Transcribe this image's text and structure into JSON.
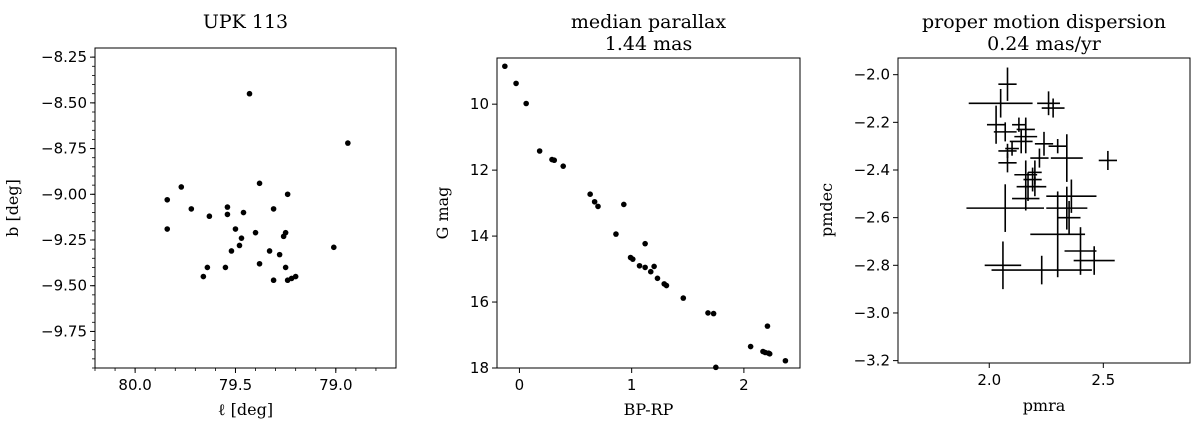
{
  "chart_data": [
    {
      "type": "scatter",
      "title": "UPK 113",
      "xlabel": "ℓ [deg]",
      "ylabel": "b [deg]",
      "xlim": [
        80.2,
        78.7
      ],
      "ylim": [
        -9.95,
        -8.2
      ],
      "xticks": [
        80.0,
        79.5,
        79.0
      ],
      "xtick_labels": [
        "80.0",
        "79.5",
        "79.0"
      ],
      "yticks": [
        -8.25,
        -8.5,
        -8.75,
        -9.0,
        -9.25,
        -9.5,
        -9.75
      ],
      "ytick_labels": [
        "−8.25",
        "−8.50",
        "−8.75",
        "−9.00",
        "−9.25",
        "−9.50",
        "−9.75"
      ],
      "grid": false,
      "points": [
        [
          79.43,
          -8.45
        ],
        [
          78.94,
          -8.72
        ],
        [
          79.84,
          -9.03
        ],
        [
          79.77,
          -8.96
        ],
        [
          79.72,
          -9.08
        ],
        [
          79.84,
          -9.19
        ],
        [
          79.63,
          -9.12
        ],
        [
          79.54,
          -9.07
        ],
        [
          79.54,
          -9.11
        ],
        [
          79.46,
          -9.1
        ],
        [
          79.38,
          -8.94
        ],
        [
          79.31,
          -9.08
        ],
        [
          79.24,
          -9.0
        ],
        [
          79.5,
          -9.19
        ],
        [
          79.4,
          -9.21
        ],
        [
          79.47,
          -9.24
        ],
        [
          79.48,
          -9.28
        ],
        [
          79.52,
          -9.31
        ],
        [
          79.25,
          -9.21
        ],
        [
          79.26,
          -9.23
        ],
        [
          79.33,
          -9.31
        ],
        [
          79.38,
          -9.38
        ],
        [
          79.28,
          -9.33
        ],
        [
          79.01,
          -9.29
        ],
        [
          79.66,
          -9.45
        ],
        [
          79.64,
          -9.4
        ],
        [
          79.55,
          -9.4
        ],
        [
          79.31,
          -9.47
        ],
        [
          79.25,
          -9.4
        ],
        [
          79.24,
          -9.47
        ],
        [
          79.22,
          -9.46
        ],
        [
          79.2,
          -9.45
        ]
      ]
    },
    {
      "type": "scatter",
      "title": "median parallax",
      "subtitle": "1.44 mas",
      "xlabel": "BP-RP",
      "ylabel": "G mag",
      "xlim": [
        -0.2,
        2.5
      ],
      "ylim": [
        18,
        8.6
      ],
      "xticks": [
        0,
        1,
        2
      ],
      "xtick_labels": [
        "0",
        "1",
        "2"
      ],
      "yticks": [
        10,
        12,
        14,
        16,
        18
      ],
      "ytick_labels": [
        "10",
        "12",
        "14",
        "16",
        "18"
      ],
      "grid": false,
      "points": [
        [
          -0.13,
          8.85
        ],
        [
          -0.03,
          9.37
        ],
        [
          0.06,
          9.98
        ],
        [
          0.18,
          11.42
        ],
        [
          0.29,
          11.68
        ],
        [
          0.31,
          11.7
        ],
        [
          0.39,
          11.88
        ],
        [
          0.63,
          12.73
        ],
        [
          0.67,
          12.96
        ],
        [
          0.7,
          13.1
        ],
        [
          0.93,
          13.04
        ],
        [
          0.86,
          13.94
        ],
        [
          0.99,
          14.65
        ],
        [
          1.01,
          14.7
        ],
        [
          1.12,
          14.23
        ],
        [
          1.07,
          14.9
        ],
        [
          1.12,
          14.95
        ],
        [
          1.17,
          15.08
        ],
        [
          1.2,
          14.92
        ],
        [
          1.23,
          15.28
        ],
        [
          1.29,
          15.45
        ],
        [
          1.31,
          15.5
        ],
        [
          1.46,
          15.88
        ],
        [
          1.68,
          16.33
        ],
        [
          1.73,
          16.35
        ],
        [
          2.21,
          16.73
        ],
        [
          2.06,
          17.35
        ],
        [
          2.17,
          17.5
        ],
        [
          2.19,
          17.53
        ],
        [
          2.22,
          17.55
        ],
        [
          2.23,
          17.57
        ],
        [
          2.37,
          17.78
        ],
        [
          1.75,
          17.98
        ]
      ]
    },
    {
      "type": "scatter",
      "title": "proper motion dispersion",
      "subtitle": "0.24 mas/yr",
      "xlabel": "pmra",
      "ylabel": "pmdec",
      "xlim": [
        1.6,
        2.88
      ],
      "ylim": [
        -3.21,
        -1.93
      ],
      "xticks": [
        2.0,
        2.5
      ],
      "xtick_labels": [
        "2.0",
        "2.5"
      ],
      "yticks": [
        -2.0,
        -2.2,
        -2.4,
        -2.6,
        -2.8,
        -3.0,
        -3.2
      ],
      "ytick_labels": [
        "−2.0",
        "−2.2",
        "−2.4",
        "−2.6",
        "−2.8",
        "−3.0",
        "−3.2"
      ],
      "grid": false,
      "error_bars": true,
      "points": [
        [
          2.08,
          -2.04,
          0.04,
          0.07
        ],
        [
          2.05,
          -2.12,
          0.14,
          0.06
        ],
        [
          2.26,
          -2.12,
          0.05,
          0.05
        ],
        [
          2.28,
          -2.14,
          0.05,
          0.04
        ],
        [
          2.03,
          -2.21,
          0.04,
          0.08
        ],
        [
          2.13,
          -2.21,
          0.03,
          0.03
        ],
        [
          2.16,
          -2.23,
          0.04,
          0.05
        ],
        [
          2.16,
          -2.26,
          0.05,
          0.07
        ],
        [
          2.07,
          -2.24,
          0.05,
          0.04
        ],
        [
          2.14,
          -2.28,
          0.05,
          0.05
        ],
        [
          2.1,
          -2.31,
          0.03,
          0.03
        ],
        [
          2.24,
          -2.29,
          0.04,
          0.05
        ],
        [
          2.08,
          -2.32,
          0.04,
          0.03
        ],
        [
          2.3,
          -2.3,
          0.04,
          0.03
        ],
        [
          2.22,
          -2.35,
          0.04,
          0.04
        ],
        [
          2.34,
          -2.35,
          0.07,
          0.1
        ],
        [
          2.52,
          -2.36,
          0.04,
          0.04
        ],
        [
          2.08,
          -2.37,
          0.04,
          0.04
        ],
        [
          2.2,
          -2.41,
          0.03,
          0.05
        ],
        [
          2.16,
          -2.42,
          0.05,
          0.06
        ],
        [
          2.19,
          -2.44,
          0.04,
          0.05
        ],
        [
          2.17,
          -2.47,
          0.05,
          0.06
        ],
        [
          2.2,
          -2.47,
          0.05,
          0.04
        ],
        [
          2.16,
          -2.52,
          0.06,
          0.05
        ],
        [
          2.36,
          -2.51,
          0.11,
          0.07
        ],
        [
          2.34,
          -2.56,
          0.09,
          0.09
        ],
        [
          2.07,
          -2.56,
          0.17,
          0.1
        ],
        [
          2.35,
          -2.6,
          0.05,
          0.07
        ],
        [
          2.3,
          -2.67,
          0.12,
          0.18
        ],
        [
          2.4,
          -2.74,
          0.07,
          0.1
        ],
        [
          2.46,
          -2.78,
          0.09,
          0.06
        ],
        [
          2.23,
          -2.82,
          0.22,
          0.06
        ],
        [
          2.06,
          -2.8,
          0.08,
          0.1
        ]
      ]
    }
  ]
}
